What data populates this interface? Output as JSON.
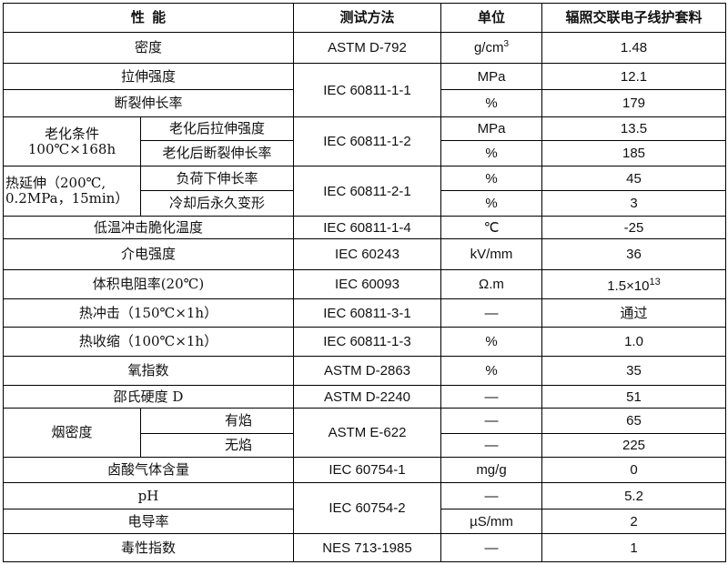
{
  "header": {
    "property": "性  能",
    "method": "测试方法",
    "unit": "单位",
    "value": "辐照交联电子线护套料"
  },
  "rows": [
    {
      "property": "密度",
      "method": "ASTM D-792",
      "unit": "g/cm",
      "unit_sup": "3",
      "value": "1.48"
    },
    {
      "property": "拉伸强度",
      "method": "IEC 60811-1-1",
      "unit": "MPa",
      "value": "12.1"
    },
    {
      "property": "断裂伸长率",
      "unit": "%",
      "value": "179"
    },
    {
      "group": "老化条件",
      "group_line2": "100℃×168h",
      "property": "老化后拉伸强度",
      "method": "IEC 60811-1-2",
      "unit": "MPa",
      "value": "13.5"
    },
    {
      "property": "老化后断裂伸长率",
      "unit": "%",
      "value": "185"
    },
    {
      "group": "热延伸（200℃,",
      "group_line2": "0.2MPa，15min）",
      "property": "负荷下伸长率",
      "method": "IEC 60811-2-1",
      "unit": "%",
      "value": "45"
    },
    {
      "property": "冷却后永久变形",
      "unit": "%",
      "value": "3"
    },
    {
      "property": "低温冲击脆化温度",
      "method": "IEC 60811-1-4",
      "unit": "℃",
      "value": "-25"
    },
    {
      "property": "介电强度",
      "method": "IEC 60243",
      "unit": "kV/mm",
      "value": "36"
    },
    {
      "property": "体积电阻率(20℃)",
      "method": "IEC 60093",
      "unit": "Ω.m",
      "value": "1.5×10",
      "value_sup": "13"
    },
    {
      "property": "热冲击（150℃×1h）",
      "method": "IEC 60811-3-1",
      "unit": "—",
      "value": "通过"
    },
    {
      "property": "热收缩（100℃×1h）",
      "method": "IEC 60811-1-3",
      "unit": "%",
      "value": "1.0"
    },
    {
      "property": "氧指数",
      "method": "ASTM D-2863",
      "unit": "%",
      "value": "35"
    },
    {
      "property": "邵氏硬度 D",
      "method": "ASTM D-2240",
      "unit": "—",
      "value": "51"
    },
    {
      "group": "烟密度",
      "property": "有焰",
      "method": "ASTM E-622",
      "unit": "—",
      "value": "65"
    },
    {
      "property": "无焰",
      "unit": "—",
      "value": "225"
    },
    {
      "property": "卤酸气体含量",
      "method": "IEC 60754-1",
      "unit": "mg/g",
      "value": "0"
    },
    {
      "property": "pH",
      "method": "IEC 60754-2",
      "unit": "—",
      "value": "5.2"
    },
    {
      "property": "电导率",
      "unit": "µS/mm",
      "value": "2"
    },
    {
      "property": "毒性指数",
      "method": "NES 713-1985",
      "unit": "—",
      "value": "1"
    }
  ]
}
